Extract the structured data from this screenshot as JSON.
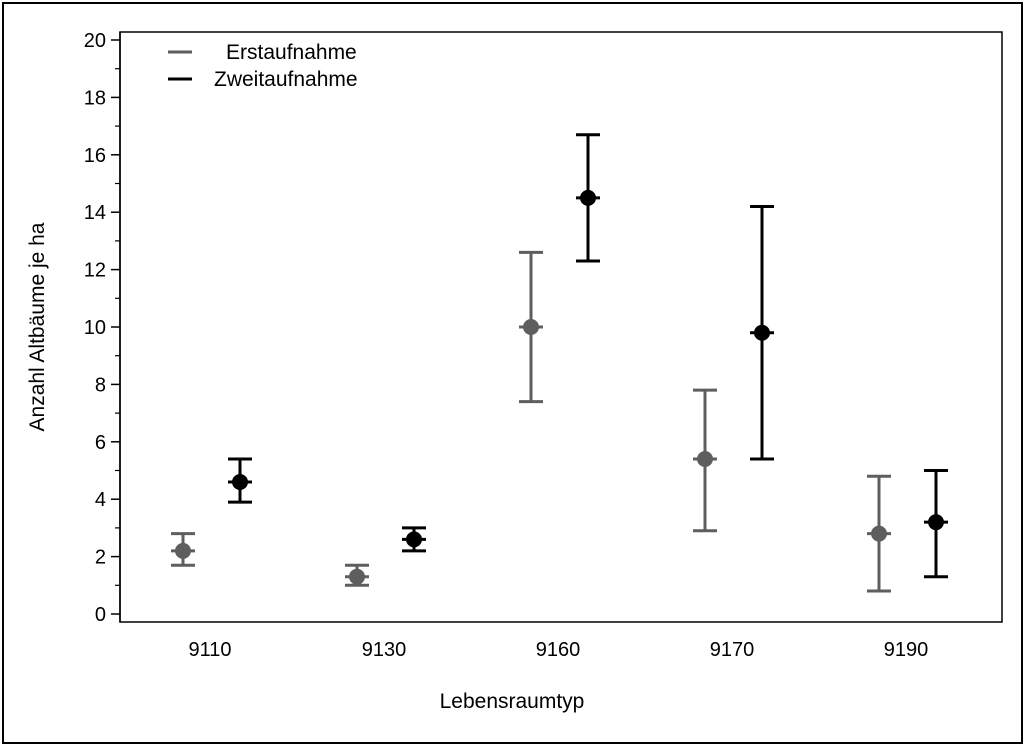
{
  "chart_data": {
    "type": "scatter",
    "title": "",
    "xlabel": "Lebensraumtyp",
    "ylabel": "Anzahl Altbäume je ha",
    "categories": [
      "9110",
      "9130",
      "9160",
      "9170",
      "9190"
    ],
    "ylim": [
      0,
      20
    ],
    "yticks": [
      0,
      2,
      4,
      6,
      8,
      10,
      12,
      14,
      16,
      18,
      20
    ],
    "grid": false,
    "legend_position": "top-left",
    "series": [
      {
        "name": "Erstaufnahme",
        "color": "#5e5e5e",
        "values": [
          2.2,
          1.3,
          10.0,
          5.4,
          2.8
        ],
        "lower": [
          1.7,
          1.0,
          7.4,
          2.9,
          0.8
        ],
        "upper": [
          2.8,
          1.7,
          12.6,
          7.8,
          4.8
        ]
      },
      {
        "name": "Zweitaufnahme",
        "color": "#000000",
        "values": [
          4.6,
          2.6,
          14.5,
          9.8,
          3.2
        ],
        "lower": [
          3.9,
          2.2,
          12.3,
          5.4,
          1.3
        ],
        "upper": [
          5.4,
          3.0,
          16.7,
          14.2,
          5.0
        ]
      }
    ]
  }
}
